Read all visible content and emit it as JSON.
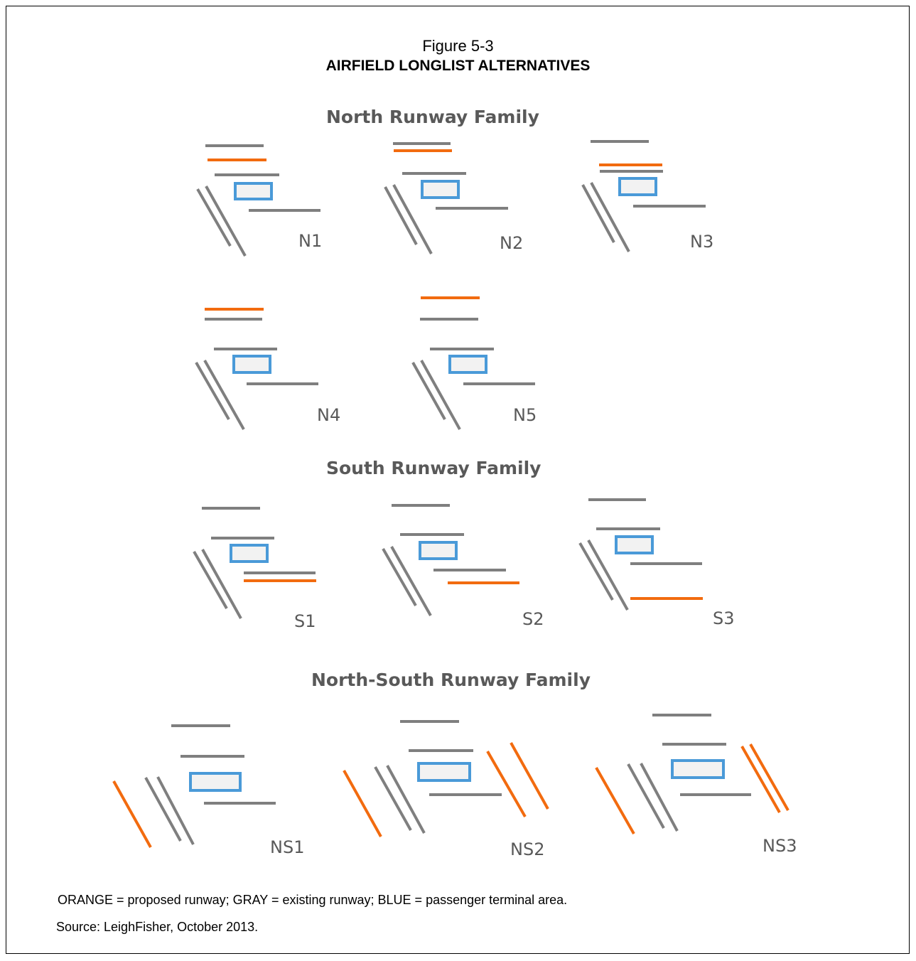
{
  "figure": {
    "number": "Figure 5-3",
    "title": "AIRFIELD LONGLIST ALTERNATIVES"
  },
  "families": [
    {
      "name": "North Runway Family"
    },
    {
      "name": "South Runway Family"
    },
    {
      "name": "North-South Runway Family"
    }
  ],
  "alternatives": [
    "N1",
    "N2",
    "N3",
    "N4",
    "N5",
    "S1",
    "S2",
    "S3",
    "NS1",
    "NS2",
    "NS3"
  ],
  "legend": {
    "text": "ORANGE = proposed runway; GRAY = existing runway; BLUE = passenger terminal area.",
    "colors": {
      "proposed": "#f26b0f",
      "existing": "#7f7f7f",
      "terminal": "#4a9ad8",
      "terminal_fill": "#f2f2f2"
    }
  },
  "source": "Source:  LeighFisher, October 2013."
}
